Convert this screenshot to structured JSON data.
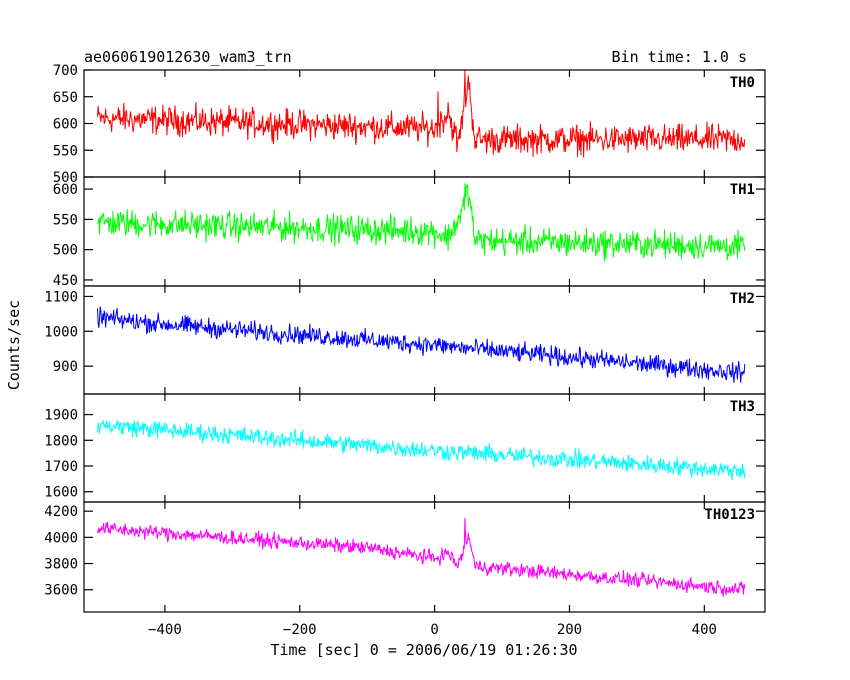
{
  "header": {
    "title": "ae060619012630_wam3_trn",
    "bin_time": "Bin time: 1.0 s"
  },
  "chart_data": {
    "type": "line",
    "xlabel": "Time [sec] 0 = 2006/06/19 01:26:30",
    "ylabel": "Counts/sec",
    "xlim": [
      -520,
      490
    ],
    "x_data_range": [
      -500,
      460
    ],
    "x_ticks": [
      -400,
      -200,
      0,
      200,
      400
    ],
    "x_tick_labels": [
      "−400",
      "−200",
      "0",
      "200",
      "400"
    ],
    "panels": [
      {
        "name": "TH0",
        "color": "#ff0000",
        "ylim": [
          500,
          700
        ],
        "y_ticks": [
          500,
          550,
          600,
          650,
          700
        ],
        "y_tick_labels": [
          "500",
          "550",
          "600",
          "650",
          "700"
        ],
        "trend": [
          [
            -500,
            610
          ],
          [
            -250,
            600
          ],
          [
            0,
            590
          ],
          [
            20,
            620
          ],
          [
            35,
            560
          ],
          [
            50,
            680
          ],
          [
            60,
            570
          ],
          [
            460,
            570
          ]
        ],
        "noise_amplitude": 35,
        "spikes": [
          [
            5,
            660
          ],
          [
            20,
            640
          ],
          [
            45,
            700
          ],
          [
            50,
            690
          ]
        ]
      },
      {
        "name": "TH1",
        "color": "#00ff00",
        "ylim": [
          440,
          620
        ],
        "y_ticks": [
          450,
          500,
          550,
          600
        ],
        "y_tick_labels": [
          "450",
          "500",
          "550",
          "600"
        ],
        "trend": [
          [
            -500,
            545
          ],
          [
            0,
            530
          ],
          [
            20,
            520
          ],
          [
            40,
            560
          ],
          [
            50,
            600
          ],
          [
            60,
            515
          ],
          [
            460,
            505
          ]
        ],
        "noise_amplitude": 30,
        "spikes": [
          [
            45,
            610
          ]
        ]
      },
      {
        "name": "TH2",
        "color": "#0000ff",
        "ylim": [
          820,
          1130
        ],
        "y_ticks": [
          900,
          1000,
          1100
        ],
        "y_tick_labels": [
          "900",
          "1000",
          "1100"
        ],
        "trend": [
          [
            -500,
            1040
          ],
          [
            -400,
            1020
          ],
          [
            0,
            960
          ],
          [
            460,
            880
          ]
        ],
        "noise_amplitude": 35,
        "spikes": []
      },
      {
        "name": "TH3",
        "color": "#00ffff",
        "ylim": [
          1560,
          1980
        ],
        "y_ticks": [
          1600,
          1700,
          1800,
          1900
        ],
        "y_tick_labels": [
          "1600",
          "1700",
          "1800",
          "1900"
        ],
        "trend": [
          [
            -500,
            1860
          ],
          [
            0,
            1760
          ],
          [
            460,
            1680
          ]
        ],
        "noise_amplitude": 45,
        "spikes": []
      },
      {
        "name": "TH0123",
        "color": "#ff00ff",
        "ylim": [
          3430,
          4270
        ],
        "y_ticks": [
          3600,
          3800,
          4000,
          4200
        ],
        "y_tick_labels": [
          "3600",
          "3800",
          "4000",
          "4200"
        ],
        "trend": [
          [
            -500,
            4070
          ],
          [
            -100,
            3920
          ],
          [
            0,
            3840
          ],
          [
            20,
            3880
          ],
          [
            35,
            3780
          ],
          [
            50,
            4020
          ],
          [
            60,
            3780
          ],
          [
            460,
            3600
          ]
        ],
        "noise_amplitude": 70,
        "spikes": [
          [
            45,
            4150
          ]
        ]
      }
    ]
  }
}
